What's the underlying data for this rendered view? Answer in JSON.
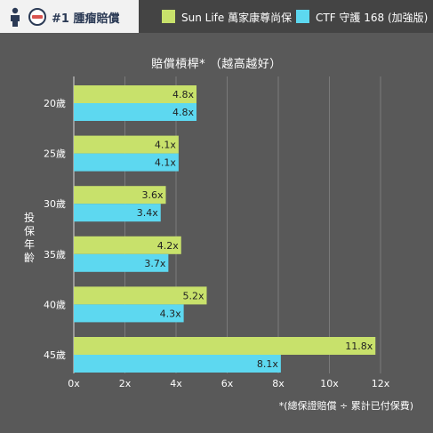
{
  "header": {
    "badge_label": "#1 腫瘤賠償",
    "person_icon": "person-icon",
    "logo_icon": "circle-logo-icon"
  },
  "chart_data": {
    "type": "bar",
    "orientation": "horizontal",
    "title": "賠償槓桿*  （越高越好）",
    "ylabel": "投保年齡",
    "categories": [
      "20歲",
      "25歲",
      "30歲",
      "35歲",
      "40歲",
      "45歲"
    ],
    "series": [
      {
        "name": "Sun Life 萬家康尊尚保",
        "color": "#c8e16b",
        "values": [
          4.8,
          4.1,
          3.6,
          4.2,
          5.2,
          11.8
        ],
        "labels": [
          "4.8x",
          "4.1x",
          "3.6x",
          "4.2x",
          "5.2x",
          "11.8x"
        ]
      },
      {
        "name": "CTF 守護 168 (加強版)",
        "color": "#5dd8f0",
        "values": [
          4.8,
          4.1,
          3.4,
          3.7,
          4.3,
          8.1
        ],
        "labels": [
          "4.8x",
          "4.1x",
          "3.4x",
          "3.7x",
          "4.3x",
          "8.1x"
        ]
      }
    ],
    "xlim": [
      0,
      12
    ],
    "xticks": [
      0,
      2,
      4,
      6,
      8,
      10,
      12
    ],
    "xtick_labels": [
      "0x",
      "2x",
      "4x",
      "6x",
      "8x",
      "10x",
      "12x"
    ],
    "grid": true,
    "legend_position": "top-right"
  },
  "footnote": "*(總保證賠償 ÷ 累計已付保費)"
}
